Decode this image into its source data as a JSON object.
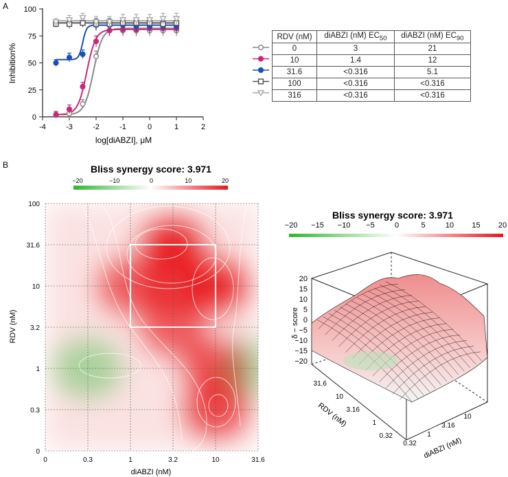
{
  "panel_labels": {
    "a": "A",
    "b": "B"
  },
  "chart_data": [
    {
      "type": "line",
      "panel": "A",
      "title": "",
      "xlabel": "log[diABZI], μM",
      "ylabel": "Inhibition%",
      "xlim": [
        -4,
        2
      ],
      "ylim": [
        0,
        100
      ],
      "xticks": [
        "-4",
        "-3",
        "-2",
        "-1",
        "0",
        "1",
        "2"
      ],
      "yticks": [
        "0",
        "25",
        "50",
        "75",
        "100"
      ],
      "x": [
        -3.5,
        -3.0,
        -2.5,
        -2.0,
        -1.5,
        -1.0,
        -0.5,
        0.0,
        0.5,
        1.0
      ],
      "series": [
        {
          "name": "0",
          "color": "#888888",
          "marker": "circle-open",
          "values": [
            2,
            3,
            12,
            56,
            80,
            80,
            80,
            80,
            80,
            80
          ],
          "fit": {
            "bottom": 2,
            "top": 82,
            "log_ec50": -2.1,
            "hill": 2.6
          }
        },
        {
          "name": "10",
          "color": "#c8287a",
          "marker": "circle",
          "values": [
            2,
            7,
            28,
            70,
            80,
            81,
            81,
            82,
            82,
            82
          ],
          "fit": {
            "bottom": 2,
            "top": 81,
            "log_ec50": -2.35,
            "hill": 2.6
          }
        },
        {
          "name": "31.6",
          "color": "#1a4fb5",
          "marker": "circle",
          "values": [
            50,
            55,
            58,
            85,
            85,
            85,
            84,
            84,
            84,
            84
          ],
          "fit": {
            "bottom": 53,
            "top": 85,
            "log_ec50": -2.5,
            "hill": 6
          }
        },
        {
          "name": "100",
          "color": "#555555",
          "marker": "square-open",
          "values": [
            86,
            86,
            87,
            86,
            86,
            87,
            87,
            87,
            86,
            87
          ],
          "fit": {
            "bottom": 87,
            "top": 87,
            "log_ec50": -2.5,
            "hill": 1
          }
        },
        {
          "name": "316",
          "color": "#aaaaaa",
          "marker": "triangle-down-open",
          "values": [
            88,
            90,
            92,
            88,
            88,
            90,
            90,
            90,
            91,
            91
          ],
          "fit": {
            "bottom": 89,
            "top": 89,
            "log_ec50": -2.5,
            "hill": 1
          }
        }
      ],
      "error_bars": [
        3,
        4,
        4,
        5,
        5,
        5,
        5,
        5,
        5,
        5
      ]
    },
    {
      "type": "table",
      "panel": "A",
      "headers": [
        "RDV (nM)",
        "diABZI (nM) EC",
        "diABZI (nM) EC"
      ],
      "header_subscripts": [
        "",
        "50",
        "90"
      ],
      "rows": [
        [
          "0",
          "3",
          "21"
        ],
        [
          "10",
          "1.4",
          "12"
        ],
        [
          "31.6",
          "<0.316",
          "5.1"
        ],
        [
          "100",
          "<0.316",
          "<0.316"
        ],
        [
          "316",
          "<0.316",
          "<0.316"
        ]
      ]
    },
    {
      "type": "heatmap",
      "panel": "B",
      "title": "Bliss synergy score: 3.971",
      "xlabel": "diABZI (nM)",
      "ylabel": "RDV (nM)",
      "x_ticks": [
        "0",
        "0.3",
        "1",
        "3.2",
        "10",
        "31.6"
      ],
      "y_ticks": [
        "0",
        "0.3",
        "1",
        "3.2",
        "10",
        "31.6",
        "100"
      ],
      "colorbar_ticks": [
        "−20",
        "−10",
        "0",
        "10",
        "20"
      ],
      "colorbar_range": [
        -20,
        20
      ],
      "highlight_box": {
        "x_from": "1",
        "x_to": "10",
        "y_from": "3.2",
        "y_to": "31.6"
      },
      "blobs": [
        {
          "x": "3.2",
          "y": "31.6",
          "score": 20
        },
        {
          "x": "10",
          "y": "10",
          "score": 19
        },
        {
          "x": "3.2",
          "y": "10",
          "score": 15
        },
        {
          "x": "1",
          "y": "10",
          "score": 12
        },
        {
          "x": "3.2",
          "y": "3.2",
          "score": 12
        },
        {
          "x": "10",
          "y": "1",
          "score": 14
        },
        {
          "x": "10",
          "y": "0.3",
          "score": 15
        },
        {
          "x": "0.3",
          "y": "1",
          "score": -9
        },
        {
          "x": "31.6",
          "y": "1",
          "score": -5
        }
      ]
    },
    {
      "type": "surface",
      "panel": "B",
      "title": "Bliss synergy score: 3.971",
      "zlabel": "δ − score",
      "xlabel": "diABZI (nM)",
      "ylabel": "RDV (nM)",
      "z_ticks": [
        "20",
        "15",
        "10",
        "5",
        "0",
        "−5",
        "−10",
        "−15",
        "−20"
      ],
      "x_ticks": [
        "0.32",
        "1",
        "3.16",
        "10"
      ],
      "y_ticks": [
        "0.32",
        "1",
        "3.16",
        "10",
        "31.6"
      ],
      "colorbar_ticks": [
        "−20",
        "−15",
        "−10",
        "−5",
        "0",
        "5",
        "10",
        "15",
        "20"
      ],
      "colorbar_range": [
        -20,
        20
      ]
    }
  ]
}
